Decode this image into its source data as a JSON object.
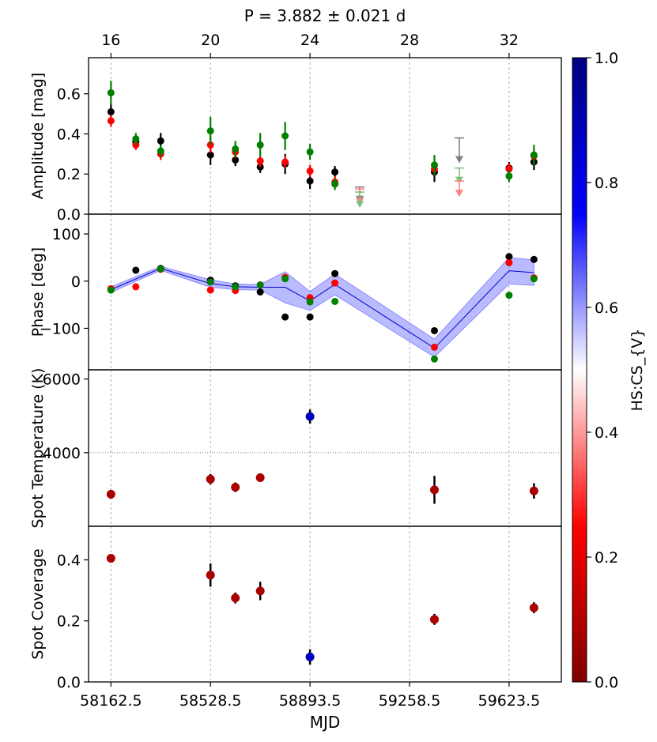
{
  "chart_data": {
    "type": "scatter",
    "title": "P = 3.882 ± 0.021 d",
    "xlabel": "MJD",
    "x_ticks": [
      "58162.5",
      "58528.5",
      "58893.5",
      "59258.5",
      "59623.5"
    ],
    "top_axis_ticks": [
      "16",
      "20",
      "24",
      "28",
      "32"
    ],
    "x_grid_epochs": [
      16,
      20,
      24,
      28,
      32
    ],
    "x_range_epochs": [
      15.1,
      34.1
    ],
    "colorbar": {
      "label": "HS:CS_{V}",
      "range": [
        0,
        1
      ],
      "ticks": [
        "0.0",
        "0.2",
        "0.4",
        "0.6",
        "0.8",
        "1.0"
      ],
      "colors": [
        "#800000",
        "#ff0000",
        "#ffffff",
        "#0000ff",
        "#000080"
      ]
    },
    "colors": {
      "black": "#000000",
      "red": "#ff0000",
      "green": "#008000",
      "gray": "#808080",
      "band": "#8c8cff",
      "line": "#0000cc"
    },
    "panels": [
      {
        "name": "amplitude",
        "ylabel": "Amplitude [mag]",
        "ylim": [
          0,
          0.78
        ],
        "yticks": [
          "0.0",
          "0.2",
          "0.4",
          "0.6"
        ],
        "series": [
          {
            "name": "black",
            "color": "#000000",
            "points": [
              [
                16,
                0.51,
                0.04
              ],
              [
                17,
                0.36,
                0.03
              ],
              [
                18,
                0.365,
                0.04
              ],
              [
                20,
                0.295,
                0.05
              ],
              [
                21,
                0.27,
                0.03
              ],
              [
                22,
                0.235,
                0.03
              ],
              [
                23,
                0.25,
                0.05
              ],
              [
                24,
                0.165,
                0.04
              ],
              [
                25,
                0.21,
                0.03
              ],
              [
                29,
                0.21,
                0.05
              ],
              [
                32,
                0.23,
                0.03
              ],
              [
                33,
                0.26,
                0.04
              ]
            ]
          },
          {
            "name": "red",
            "color": "#ff0000",
            "points": [
              [
                16,
                0.465,
                0.03
              ],
              [
                17,
                0.345,
                0.025
              ],
              [
                18,
                0.3,
                0.03
              ],
              [
                20,
                0.345,
                0.04
              ],
              [
                21,
                0.31,
                0.03
              ],
              [
                22,
                0.265,
                0.03
              ],
              [
                23,
                0.26,
                0.03
              ],
              [
                24,
                0.215,
                0.03
              ],
              [
                25,
                0.16,
                0.03
              ],
              [
                29,
                0.225,
                0.03
              ],
              [
                32,
                0.225,
                0.03
              ],
              [
                33,
                0.29,
                0.03
              ]
            ]
          },
          {
            "name": "green",
            "color": "#008000",
            "points": [
              [
                16,
                0.605,
                0.06
              ],
              [
                17,
                0.375,
                0.03
              ],
              [
                18,
                0.315,
                0.03
              ],
              [
                20,
                0.415,
                0.07
              ],
              [
                21,
                0.325,
                0.04
              ],
              [
                22,
                0.345,
                0.06
              ],
              [
                23,
                0.39,
                0.07
              ],
              [
                24,
                0.31,
                0.04
              ],
              [
                25,
                0.15,
                0.03
              ],
              [
                29,
                0.245,
                0.05
              ],
              [
                32,
                0.19,
                0.03
              ],
              [
                33,
                0.295,
                0.05
              ]
            ]
          }
        ],
        "upper_limits": [
          {
            "color": "#808080",
            "x": 26,
            "y": 0.135
          },
          {
            "color": "#ff8080",
            "x": 26,
            "y": 0.125
          },
          {
            "color": "#80c080",
            "x": 26,
            "y": 0.11
          },
          {
            "color": "#808080",
            "x": 30,
            "y": 0.38
          },
          {
            "color": "#80c080",
            "x": 30,
            "y": 0.23
          },
          {
            "color": "#ff8080",
            "x": 30,
            "y": 0.165
          }
        ]
      },
      {
        "name": "phase",
        "ylabel": "Phase [deg]",
        "ylim": [
          -188,
          142
        ],
        "yticks": [
          "−100",
          "0",
          "100"
        ],
        "ytick_values": [
          -100,
          0,
          100
        ],
        "model": {
          "x": [
            16,
            18,
            20,
            21,
            22,
            23,
            24,
            25,
            29,
            32,
            33
          ],
          "y": [
            -18,
            27,
            -5,
            -12,
            -13,
            -13,
            -42,
            -7,
            -142,
            22,
            18
          ],
          "upper": [
            -12,
            31,
            3,
            -6,
            -7,
            20,
            -22,
            15,
            -123,
            50,
            45
          ],
          "lower": [
            -24,
            23,
            -13,
            -18,
            -19,
            -46,
            -62,
            -29,
            -161,
            -6,
            -9
          ]
        },
        "series": [
          {
            "name": "black",
            "color": "#000000",
            "points": [
              [
                16,
                -17
              ],
              [
                17,
                23
              ],
              [
                18,
                27
              ],
              [
                20,
                2
              ],
              [
                21,
                -10
              ],
              [
                22,
                -23
              ],
              [
                23,
                -76
              ],
              [
                24,
                -76
              ],
              [
                25,
                16
              ],
              [
                29,
                -105
              ],
              [
                32,
                52
              ],
              [
                33,
                46
              ]
            ]
          },
          {
            "name": "red",
            "color": "#ff0000",
            "points": [
              [
                16,
                -16
              ],
              [
                17,
                -12
              ],
              [
                18,
                25
              ],
              [
                20,
                -19
              ],
              [
                21,
                -20
              ],
              [
                22,
                -8
              ],
              [
                23,
                8
              ],
              [
                24,
                -35
              ],
              [
                25,
                -4
              ],
              [
                29,
                -140
              ],
              [
                32,
                39
              ],
              [
                33,
                7
              ]
            ]
          },
          {
            "name": "green",
            "color": "#008000",
            "points": [
              [
                16,
                -19
              ],
              [
                18,
                26
              ],
              [
                20,
                -2
              ],
              [
                21,
                -12
              ],
              [
                22,
                -8
              ],
              [
                23,
                5
              ],
              [
                24,
                -44
              ],
              [
                25,
                -43
              ],
              [
                29,
                -165
              ],
              [
                32,
                -30
              ],
              [
                33,
                5
              ]
            ]
          }
        ]
      },
      {
        "name": "spot_temperature",
        "ylabel": "Spot Temperature (K)",
        "ylim": [
          2000,
          6250
        ],
        "yticks": [
          "4000",
          "6000"
        ],
        "ytick_values": [
          4000,
          6000
        ],
        "hline": 4000,
        "points": [
          [
            16,
            2870,
            120,
            0.08
          ],
          [
            20,
            3280,
            140,
            0.08
          ],
          [
            21,
            3060,
            130,
            0.08
          ],
          [
            22,
            3320,
            110,
            0.08
          ],
          [
            24,
            4980,
            190,
            0.88
          ],
          [
            29,
            2990,
            380,
            0.08
          ],
          [
            33,
            2960,
            210,
            0.08
          ]
        ]
      },
      {
        "name": "spot_coverage",
        "ylabel": "Spot Coverage",
        "ylim": [
          0,
          0.51
        ],
        "yticks": [
          "0.0",
          "0.2",
          "0.4"
        ],
        "ytick_values": [
          0,
          0.2,
          0.4
        ],
        "points": [
          [
            16,
            0.405,
            0.012,
            0.08
          ],
          [
            20,
            0.35,
            0.038,
            0.08
          ],
          [
            21,
            0.275,
            0.018,
            0.08
          ],
          [
            22,
            0.298,
            0.03,
            0.08
          ],
          [
            24,
            0.082,
            0.025,
            0.88
          ],
          [
            29,
            0.205,
            0.018,
            0.08
          ],
          [
            33,
            0.243,
            0.018,
            0.08
          ]
        ]
      }
    ]
  }
}
